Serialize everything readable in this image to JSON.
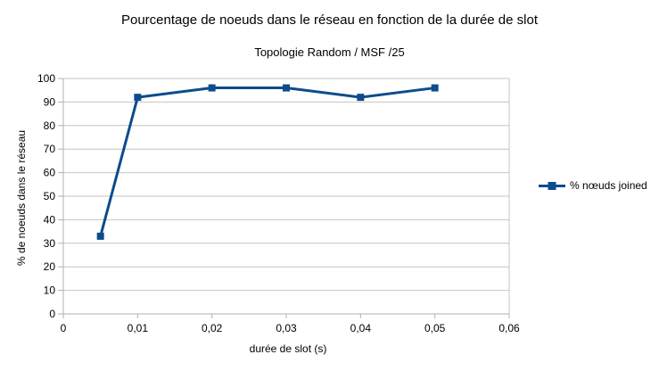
{
  "colors": {
    "background": "#ffffff",
    "grid": "#c4c4c4",
    "axis": "#b1b1b1",
    "text": "#000000",
    "series": "#0d4c8c"
  },
  "chart_data": {
    "type": "line",
    "title": "Pourcentage de noeuds dans le réseau en fonction de la durée de slot",
    "subtitle": "Topologie Random / MSF /25",
    "xlabel": "durée de slot (s)",
    "ylabel": "% de noeuds dans le réseau",
    "xlim": [
      0,
      0.06
    ],
    "ylim": [
      0,
      100
    ],
    "grid": true,
    "legend_position": "right",
    "x_ticks": [
      {
        "value": 0,
        "label": "0"
      },
      {
        "value": 0.01,
        "label": "0,01"
      },
      {
        "value": 0.02,
        "label": "0,02"
      },
      {
        "value": 0.03,
        "label": "0,03"
      },
      {
        "value": 0.04,
        "label": "0,04"
      },
      {
        "value": 0.05,
        "label": "0,05"
      },
      {
        "value": 0.06,
        "label": "0,06"
      }
    ],
    "y_ticks": [
      0,
      10,
      20,
      30,
      40,
      50,
      60,
      70,
      80,
      90,
      100
    ],
    "series": [
      {
        "name": "% nœuds joined",
        "color": "#0d4c8c",
        "marker": "square",
        "points": [
          {
            "x": 0.005,
            "y": 33
          },
          {
            "x": 0.01,
            "y": 92
          },
          {
            "x": 0.02,
            "y": 96
          },
          {
            "x": 0.03,
            "y": 96
          },
          {
            "x": 0.04,
            "y": 92
          },
          {
            "x": 0.05,
            "y": 96
          }
        ]
      }
    ]
  }
}
